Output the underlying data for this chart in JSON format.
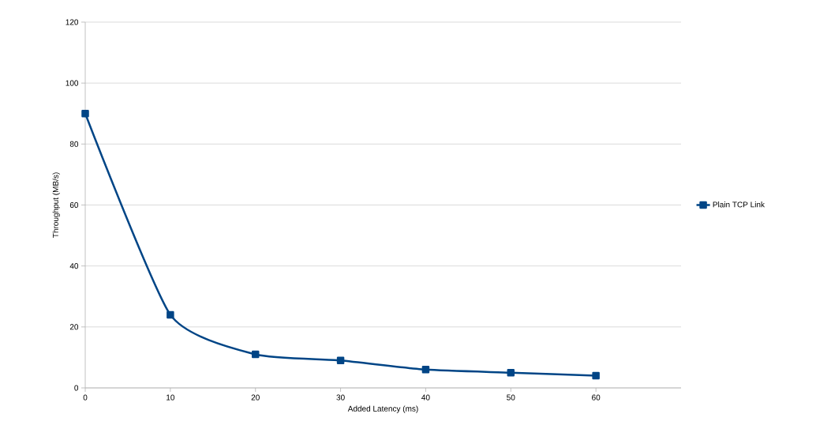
{
  "chart_data": {
    "type": "line",
    "xlabel": "Added Latency (ms)",
    "ylabel": "Throughput (MB/s)",
    "x": [
      0,
      10,
      20,
      30,
      40,
      50,
      60
    ],
    "series": [
      {
        "name": "Plain TCP Link",
        "color": "#004586",
        "values": [
          90,
          24,
          11,
          9,
          6,
          5,
          4
        ]
      }
    ],
    "xlim": [
      0,
      70
    ],
    "ylim": [
      0,
      120
    ],
    "xticks": [
      0,
      10,
      20,
      30,
      40,
      50,
      60
    ],
    "yticks": [
      0,
      20,
      40,
      60,
      80,
      100,
      120
    ],
    "grid": "y",
    "legend": "right",
    "marker": "square",
    "line_style": "solid"
  }
}
